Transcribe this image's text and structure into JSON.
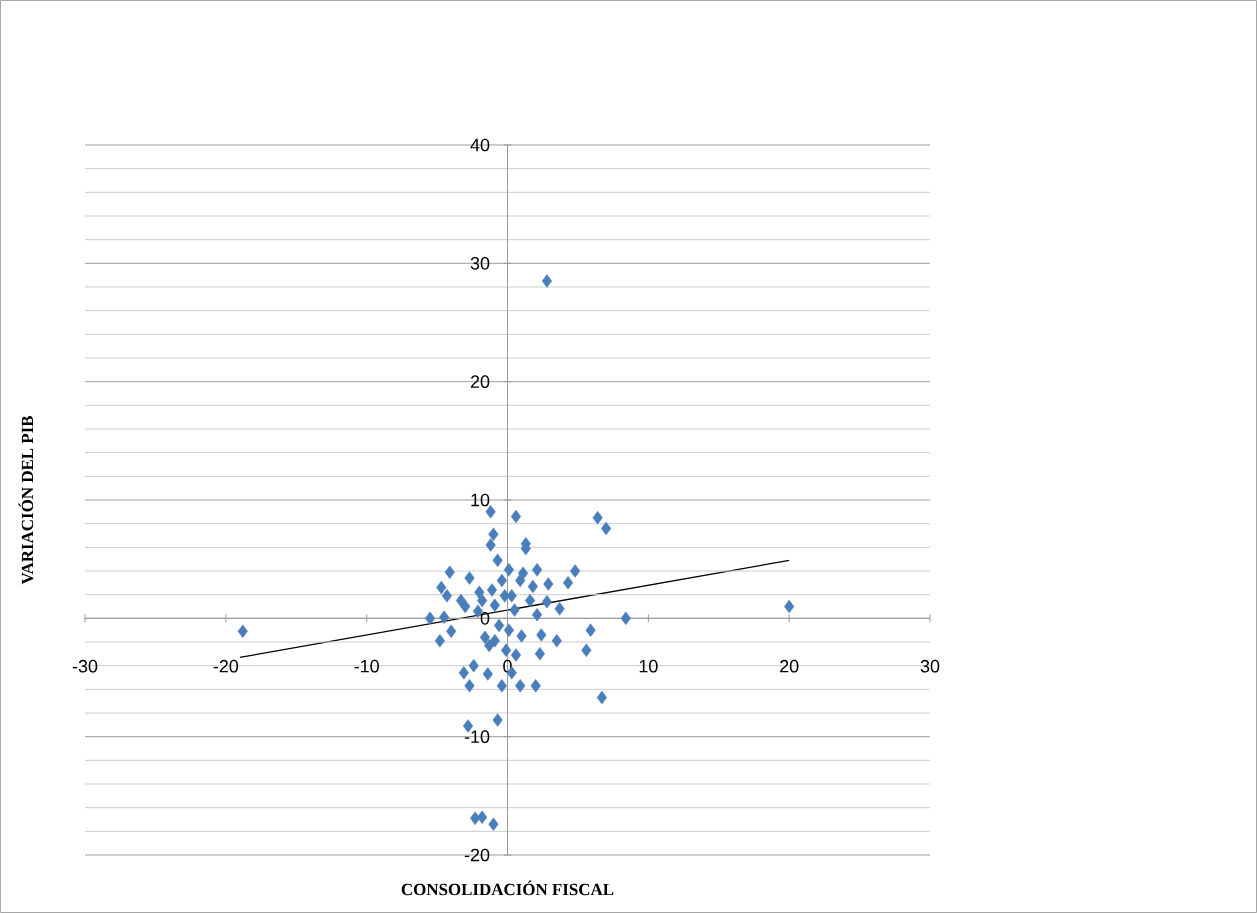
{
  "chart_data": {
    "type": "scatter",
    "xlabel": "CONSOLIDACIÓN FISCAL",
    "ylabel": "VARIACIÓN DEL PIB",
    "xlim": [
      -30,
      30
    ],
    "xticks": [
      -30,
      -20,
      -10,
      0,
      10,
      20,
      30
    ],
    "ylim": [
      -20,
      40
    ],
    "yticks": [
      -20,
      -10,
      0,
      10,
      20,
      30,
      40
    ],
    "grid": "y",
    "marker": "diamond",
    "series": [
      {
        "color": "#4a7ebb",
        "x": [
          -18.8,
          2.8,
          20.0,
          8.4,
          6.4,
          7.0,
          6.7,
          5.6,
          5.9,
          4.8,
          4.3,
          2.9,
          3.7,
          3.5,
          2.4,
          2.3,
          2.0,
          2.1,
          1.3,
          1.3,
          0.6,
          -1.2,
          -1.0,
          -1.2,
          -0.7,
          -4.1,
          -4.7,
          -4.3,
          -2.7,
          -3.0,
          -5.5,
          -4.5,
          -4.8,
          -4.0,
          -3.1,
          -2.7,
          -2.4,
          -1.4,
          -1.6,
          -1.3,
          -0.4,
          -0.7,
          -2.8,
          -2.3,
          -1.8,
          -1.0,
          0.9,
          0.3,
          0.6,
          1.0,
          0.1,
          -0.6,
          0.5,
          1.6,
          1.8,
          0.9,
          0.1,
          -0.4,
          -1.1,
          -2.0,
          -1.8,
          -0.9,
          -0.2,
          0.3,
          1.1,
          2.1,
          2.8,
          -2.1,
          -3.3,
          -0.9,
          -0.1
        ],
        "values": [
          -1.1,
          28.5,
          1.0,
          0.0,
          8.5,
          7.6,
          -6.7,
          -2.7,
          -1.0,
          4.0,
          3.0,
          2.9,
          0.8,
          -1.9,
          -1.4,
          -3.0,
          -5.7,
          4.1,
          6.3,
          5.9,
          8.6,
          9.0,
          7.1,
          6.2,
          4.9,
          3.9,
          2.6,
          1.9,
          3.4,
          1.0,
          0.0,
          0.1,
          -1.9,
          -1.1,
          -4.6,
          -5.7,
          -4.0,
          -4.7,
          -1.6,
          -2.3,
          -5.7,
          -8.6,
          -9.1,
          -16.9,
          -16.8,
          -17.4,
          -5.7,
          -4.6,
          -3.1,
          -1.5,
          -1.0,
          -0.6,
          0.7,
          1.5,
          2.7,
          3.2,
          4.1,
          3.2,
          2.4,
          2.2,
          1.5,
          1.1,
          1.9,
          1.9,
          3.8,
          0.3,
          1.4,
          0.6,
          1.5,
          -1.9,
          -2.7
        ]
      },
      {
        "type": "line",
        "color": "#000000",
        "marker": "none",
        "x": [
          -19,
          20
        ],
        "values": [
          -3.3,
          4.9
        ]
      }
    ]
  }
}
